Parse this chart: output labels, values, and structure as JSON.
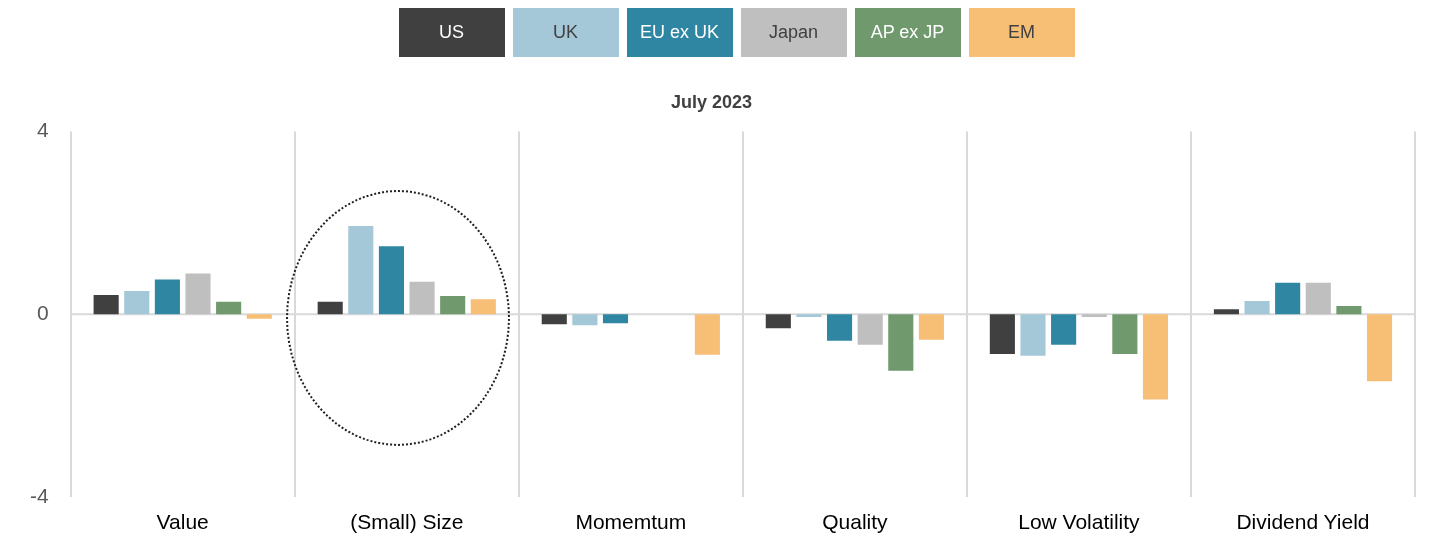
{
  "chart_data": {
    "type": "bar",
    "title": "July 2023",
    "categories": [
      "Value",
      "(Small) Size",
      "Momemtum",
      "Quality",
      "Low Volatility",
      "Dividend Yield"
    ],
    "series": [
      {
        "name": "US",
        "color": "#404040",
        "values": [
          0.42,
          0.27,
          -0.22,
          -0.31,
          -0.87,
          0.11
        ]
      },
      {
        "name": "UK",
        "color": "#a5c8d8",
        "values": [
          0.51,
          1.93,
          -0.24,
          -0.06,
          -0.91,
          0.29
        ]
      },
      {
        "name": "EU ex UK",
        "color": "#2e86a3",
        "values": [
          0.76,
          1.49,
          -0.2,
          -0.58,
          -0.67,
          0.69
        ]
      },
      {
        "name": "Japan",
        "color": "#bfbfbf",
        "values": [
          0.89,
          0.71,
          0,
          -0.67,
          -0.06,
          0.69
        ]
      },
      {
        "name": "AP ex JP",
        "color": "#70996e",
        "values": [
          0.27,
          0.4,
          0,
          -1.24,
          -0.87,
          0.18
        ]
      },
      {
        "name": "EM",
        "color": "#f7bf76",
        "values": [
          -0.1,
          0.33,
          -0.89,
          -0.56,
          -1.87,
          -1.47
        ]
      }
    ],
    "ylim": [
      -4,
      4
    ],
    "yticks": [
      -4,
      0,
      4
    ],
    "grid": "x",
    "legend": "top",
    "ref_lines": [
      {
        "axis": "y",
        "value": 0,
        "color": "#d9d9d9"
      }
    ]
  }
}
